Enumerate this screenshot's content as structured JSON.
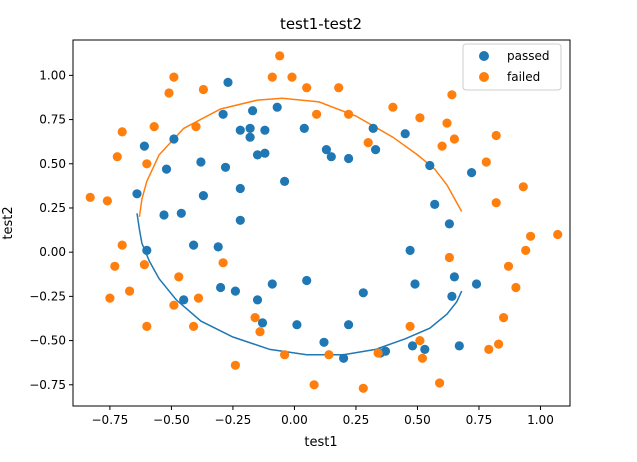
{
  "chart_data": {
    "type": "scatter",
    "title": "test1-test2",
    "xlabel": "test1",
    "ylabel": "test2",
    "xlim": [
      -0.9,
      1.12
    ],
    "ylim": [
      -0.87,
      1.2
    ],
    "xticks": [
      -0.75,
      -0.5,
      -0.25,
      0.0,
      0.25,
      0.5,
      0.75,
      1.0
    ],
    "yticks": [
      -0.75,
      -0.5,
      -0.25,
      0.0,
      0.25,
      0.5,
      0.75,
      1.0
    ],
    "xtick_labels": [
      "−0.75",
      "−0.50",
      "−0.25",
      "0.00",
      "0.25",
      "0.50",
      "0.75",
      "1.00"
    ],
    "ytick_labels": [
      "−0.75",
      "−0.50",
      "−0.25",
      "0.00",
      "0.25",
      "0.50",
      "0.75",
      "1.00"
    ],
    "grid": false,
    "legend_position": "top-right",
    "series": [
      {
        "name": "passed",
        "color": "#1f77b4",
        "points": [
          [
            -0.64,
            0.33
          ],
          [
            -0.61,
            0.6
          ],
          [
            -0.6,
            0.01
          ],
          [
            -0.53,
            0.21
          ],
          [
            -0.52,
            0.47
          ],
          [
            -0.49,
            0.64
          ],
          [
            -0.46,
            0.22
          ],
          [
            -0.45,
            -0.27
          ],
          [
            -0.41,
            0.04
          ],
          [
            -0.38,
            0.51
          ],
          [
            -0.37,
            0.32
          ],
          [
            -0.31,
            0.03
          ],
          [
            -0.3,
            -0.2
          ],
          [
            -0.29,
            0.78
          ],
          [
            -0.28,
            0.48
          ],
          [
            -0.27,
            0.96
          ],
          [
            -0.24,
            -0.22
          ],
          [
            -0.22,
            0.69
          ],
          [
            -0.22,
            0.36
          ],
          [
            -0.22,
            0.18
          ],
          [
            -0.18,
            0.7
          ],
          [
            -0.18,
            0.65
          ],
          [
            -0.17,
            0.8
          ],
          [
            -0.15,
            0.55
          ],
          [
            -0.15,
            -0.27
          ],
          [
            -0.13,
            -0.4
          ],
          [
            -0.12,
            0.69
          ],
          [
            -0.12,
            0.56
          ],
          [
            -0.09,
            -0.18
          ],
          [
            -0.07,
            0.82
          ],
          [
            -0.04,
            0.4
          ],
          [
            0.01,
            -0.41
          ],
          [
            0.04,
            0.7
          ],
          [
            0.05,
            -0.16
          ],
          [
            0.12,
            -0.51
          ],
          [
            0.13,
            0.58
          ],
          [
            0.15,
            0.54
          ],
          [
            0.2,
            -0.6
          ],
          [
            0.22,
            0.53
          ],
          [
            0.22,
            -0.41
          ],
          [
            0.28,
            -0.23
          ],
          [
            0.32,
            0.7
          ],
          [
            0.33,
            0.58
          ],
          [
            0.35,
            -0.57
          ],
          [
            0.37,
            -0.56
          ],
          [
            0.45,
            0.67
          ],
          [
            0.47,
            0.01
          ],
          [
            0.48,
            -0.53
          ],
          [
            0.49,
            -0.18
          ],
          [
            0.53,
            -0.55
          ],
          [
            0.55,
            0.49
          ],
          [
            0.57,
            0.27
          ],
          [
            0.63,
            0.16
          ],
          [
            0.64,
            -0.25
          ],
          [
            0.65,
            -0.14
          ],
          [
            0.67,
            -0.53
          ],
          [
            0.72,
            0.45
          ],
          [
            0.74,
            -0.18
          ]
        ]
      },
      {
        "name": "failed",
        "color": "#ff7f0e",
        "points": [
          [
            -0.83,
            0.31
          ],
          [
            -0.76,
            0.29
          ],
          [
            -0.75,
            -0.26
          ],
          [
            -0.73,
            -0.08
          ],
          [
            -0.72,
            0.54
          ],
          [
            -0.7,
            0.04
          ],
          [
            -0.7,
            0.68
          ],
          [
            -0.67,
            -0.22
          ],
          [
            -0.61,
            -0.07
          ],
          [
            -0.6,
            -0.42
          ],
          [
            -0.6,
            0.5
          ],
          [
            -0.57,
            0.71
          ],
          [
            -0.51,
            0.9
          ],
          [
            -0.49,
            0.99
          ],
          [
            -0.49,
            -0.3
          ],
          [
            -0.47,
            -0.14
          ],
          [
            -0.41,
            -0.42
          ],
          [
            -0.4,
            0.71
          ],
          [
            -0.39,
            -0.26
          ],
          [
            -0.37,
            0.92
          ],
          [
            -0.29,
            -0.06
          ],
          [
            -0.24,
            -0.64
          ],
          [
            -0.16,
            -0.37
          ],
          [
            -0.14,
            -0.45
          ],
          [
            -0.09,
            0.99
          ],
          [
            -0.06,
            1.11
          ],
          [
            -0.04,
            -0.58
          ],
          [
            -0.01,
            0.99
          ],
          [
            0.05,
            0.93
          ],
          [
            0.08,
            -0.75
          ],
          [
            0.09,
            0.78
          ],
          [
            0.14,
            -0.58
          ],
          [
            0.18,
            0.93
          ],
          [
            0.22,
            0.78
          ],
          [
            0.28,
            -0.77
          ],
          [
            0.3,
            0.62
          ],
          [
            0.34,
            -0.57
          ],
          [
            0.4,
            0.82
          ],
          [
            0.47,
            -0.42
          ],
          [
            0.51,
            0.76
          ],
          [
            0.51,
            -0.5
          ],
          [
            0.52,
            -0.6
          ],
          [
            0.59,
            -0.74
          ],
          [
            0.6,
            0.6
          ],
          [
            0.62,
            0.73
          ],
          [
            0.63,
            -0.03
          ],
          [
            0.64,
            0.89
          ],
          [
            0.65,
            0.64
          ],
          [
            0.78,
            0.51
          ],
          [
            0.79,
            -0.55
          ],
          [
            0.82,
            0.66
          ],
          [
            0.82,
            0.28
          ],
          [
            0.83,
            -0.52
          ],
          [
            0.85,
            -0.37
          ],
          [
            0.87,
            -0.08
          ],
          [
            0.9,
            -0.2
          ],
          [
            0.93,
            0.37
          ],
          [
            0.94,
            0.01
          ],
          [
            0.96,
            0.09
          ],
          [
            1.07,
            0.1
          ]
        ]
      }
    ],
    "curves": [
      {
        "color": "#ff7f0e",
        "points": [
          [
            -0.63,
            0.2
          ],
          [
            -0.62,
            0.3
          ],
          [
            -0.6,
            0.4
          ],
          [
            -0.55,
            0.55
          ],
          [
            -0.45,
            0.7
          ],
          [
            -0.3,
            0.81
          ],
          [
            -0.15,
            0.86
          ],
          [
            -0.05,
            0.87
          ],
          [
            0.1,
            0.85
          ],
          [
            0.25,
            0.77
          ],
          [
            0.4,
            0.65
          ],
          [
            0.5,
            0.55
          ],
          [
            0.57,
            0.47
          ],
          [
            0.62,
            0.38
          ],
          [
            0.66,
            0.28
          ],
          [
            0.68,
            0.23
          ]
        ]
      },
      {
        "color": "#1f77b4",
        "points": [
          [
            -0.64,
            0.22
          ],
          [
            -0.63,
            0.13
          ],
          [
            -0.62,
            0.05
          ],
          [
            -0.59,
            -0.05
          ],
          [
            -0.55,
            -0.15
          ],
          [
            -0.48,
            -0.27
          ],
          [
            -0.38,
            -0.39
          ],
          [
            -0.25,
            -0.48
          ],
          [
            -0.1,
            -0.55
          ],
          [
            0.05,
            -0.58
          ],
          [
            0.2,
            -0.58
          ],
          [
            0.33,
            -0.55
          ],
          [
            0.45,
            -0.49
          ],
          [
            0.55,
            -0.43
          ],
          [
            0.62,
            -0.35
          ],
          [
            0.66,
            -0.28
          ],
          [
            0.68,
            -0.22
          ]
        ]
      }
    ]
  }
}
